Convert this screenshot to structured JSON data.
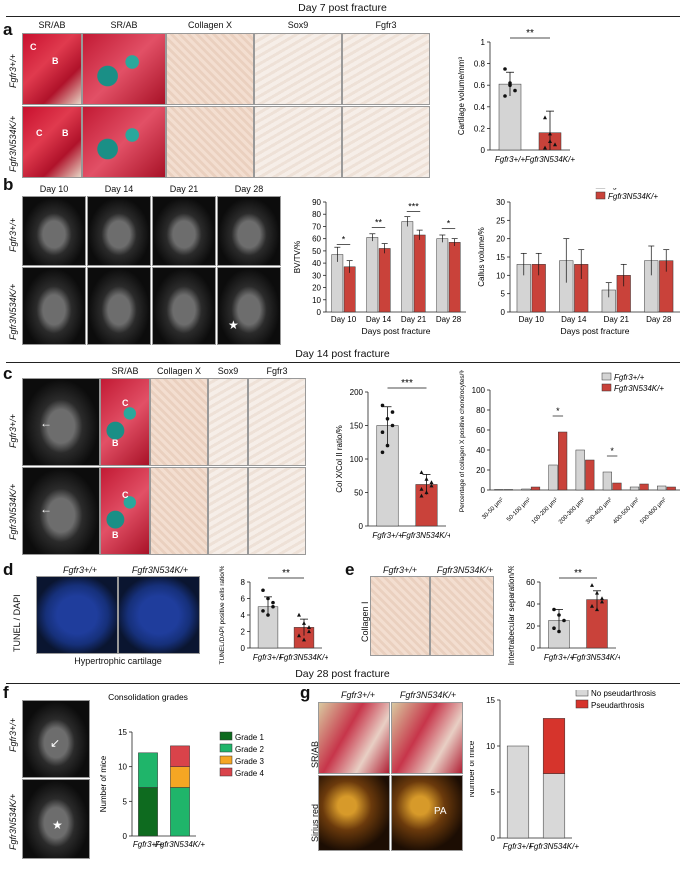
{
  "sections": {
    "day7": "Day 7 post fracture",
    "day14": "Day 14 post fracture",
    "day28": "Day 28 post fracture"
  },
  "panels": {
    "a": "a",
    "b": "b",
    "c": "c",
    "d": "d",
    "e": "e",
    "f": "f",
    "g": "g"
  },
  "genotypes": {
    "wt": "Fgfr3+/+",
    "mut": "Fgfr3N534K/+"
  },
  "panel_a": {
    "stains": [
      "SR/AB",
      "SR/AB",
      "Collagen X",
      "Sox9",
      "Fgfr3"
    ],
    "letters": [
      "C",
      "B",
      "C",
      "B"
    ]
  },
  "panel_b": {
    "days": [
      "Day 10",
      "Day 14",
      "Day 21",
      "Day 28"
    ],
    "star": "★"
  },
  "panel_c": {
    "stains": [
      "SR/AB",
      "Collagen X",
      "Sox9",
      "Fgfr3"
    ],
    "letters": [
      "C",
      "B",
      "C",
      "B"
    ]
  },
  "panel_d": {
    "ylabel": "TUNEL / DAPI",
    "caption": "Hypertrophic cartilage"
  },
  "panel_e": {
    "ylabel": "Collagen I"
  },
  "panel_g": {
    "labels": [
      "SR/AB",
      "Sirius red"
    ],
    "pa": "PA"
  },
  "chart_data": [
    {
      "id": "a",
      "type": "bar",
      "categories": [
        "Fgfr3+/+",
        "Fgfr3N534K/+"
      ],
      "values": [
        0.61,
        0.16
      ],
      "errors": [
        0.11,
        0.2
      ],
      "points": [
        [
          0.75,
          0.6,
          0.55,
          0.5,
          0.62
        ],
        [
          0.3,
          0.15,
          0.05,
          0.02,
          0.08
        ]
      ],
      "ylabel": "Cartilage volume/mm³",
      "ylim": [
        0,
        1.0
      ],
      "yticks": [
        0,
        0.2,
        0.4,
        0.6,
        0.8,
        1.0
      ],
      "sig": "**"
    },
    {
      "id": "b1",
      "type": "bar",
      "categories": [
        "Day 10",
        "Day 14",
        "Day 21",
        "Day 28"
      ],
      "series": [
        {
          "name": "Fgfr3+/+",
          "values": [
            47,
            61,
            74,
            60
          ]
        },
        {
          "name": "Fgfr3N534K/+",
          "values": [
            37,
            52,
            63,
            57
          ]
        }
      ],
      "errors": [
        [
          6,
          3,
          4,
          3
        ],
        [
          5,
          4,
          4,
          3
        ]
      ],
      "ylabel": "BV/TV/%",
      "xlabel": "Days post fracture",
      "ylim": [
        0,
        90
      ],
      "yticks": [
        0,
        10,
        20,
        30,
        40,
        50,
        60,
        70,
        80,
        90
      ],
      "sig": [
        "*",
        "**",
        "***",
        "*"
      ]
    },
    {
      "id": "b2",
      "type": "bar",
      "categories": [
        "Day 10",
        "Day 14",
        "Day 21",
        "Day 28"
      ],
      "series": [
        {
          "name": "Fgfr3+/+",
          "values": [
            13,
            14,
            6,
            14
          ]
        },
        {
          "name": "Fgfr3N534K/+",
          "values": [
            13,
            13,
            10,
            14
          ]
        }
      ],
      "errors": [
        [
          3,
          6,
          2,
          4
        ],
        [
          3,
          4,
          3,
          3
        ]
      ],
      "ylabel": "Callus volume/%",
      "xlabel": "Days post fracture",
      "ylim": [
        0,
        30
      ],
      "yticks": [
        0,
        5,
        10,
        15,
        20,
        25,
        30
      ]
    },
    {
      "id": "c1",
      "type": "bar",
      "categories": [
        "Fgfr3+/+",
        "Fgfr3N534K/+"
      ],
      "values": [
        150,
        62
      ],
      "errors": [
        28,
        15
      ],
      "points": [
        [
          180,
          160,
          150,
          140,
          120,
          170,
          110
        ],
        [
          80,
          70,
          60,
          55,
          50,
          65,
          45
        ]
      ],
      "ylabel": "Col X/Col II ratio/%",
      "ylim": [
        0,
        200
      ],
      "yticks": [
        0,
        50,
        100,
        150,
        200
      ],
      "sig": "***"
    },
    {
      "id": "c2",
      "type": "bar",
      "categories": [
        "30-50 μm²",
        "50-100 μm²",
        "100-200 μm²",
        "200-300 μm²",
        "300-400 μm²",
        "400-500 μm²",
        "500-600 μm²"
      ],
      "series": [
        {
          "name": "Fgfr3+/+",
          "values": [
            0.5,
            1,
            25,
            40,
            18,
            3,
            4
          ]
        },
        {
          "name": "Fgfr3N534K/+",
          "values": [
            0.5,
            3,
            58,
            30,
            7,
            6,
            3
          ]
        }
      ],
      "ylabel": "Percentage of collagen X positive chondrocytes/%",
      "ylim": [
        0,
        100
      ],
      "yticks": [
        0,
        20,
        40,
        60,
        80,
        100
      ],
      "sig": [
        "*",
        "*"
      ]
    },
    {
      "id": "d",
      "type": "bar",
      "categories": [
        "Fgfr3+/+",
        "Fgfr3N534K/+"
      ],
      "values": [
        5.0,
        2.5
      ],
      "errors": [
        1.2,
        1.0
      ],
      "points": [
        [
          7,
          6,
          5,
          4.5,
          4,
          5.5
        ],
        [
          4,
          3,
          2,
          1.5,
          1,
          2.5
        ]
      ],
      "ylabel": "TUNEL/DAPI positive cells ratio/%",
      "ylim": [
        0,
        8
      ],
      "yticks": [
        0,
        2,
        4,
        6,
        8
      ],
      "sig": "**"
    },
    {
      "id": "e",
      "type": "bar",
      "categories": [
        "Fgfr3+/+",
        "Fgfr3N534K/+"
      ],
      "values": [
        25,
        44
      ],
      "errors": [
        10,
        8
      ],
      "points": [
        [
          35,
          30,
          25,
          18,
          15
        ],
        [
          57,
          50,
          45,
          38,
          35,
          42
        ]
      ],
      "ylabel": "Intertrabecular separation/%",
      "ylim": [
        0,
        60
      ],
      "yticks": [
        0,
        20,
        40,
        60
      ],
      "sig": "**"
    },
    {
      "id": "f",
      "type": "bar",
      "stacked": true,
      "categories": [
        "Fgfr3+/+",
        "Fgfr3N534K/+"
      ],
      "series": [
        {
          "name": "Grade 1",
          "values": [
            7,
            0
          ]
        },
        {
          "name": "Grade 2",
          "values": [
            5,
            7
          ]
        },
        {
          "name": "Grade 3",
          "values": [
            0,
            3
          ]
        },
        {
          "name": "Grade 4",
          "values": [
            0,
            3
          ]
        }
      ],
      "title": "Consolidation grades",
      "ylabel": "Number of mice",
      "ylim": [
        0,
        15
      ],
      "yticks": [
        0,
        5,
        10,
        15
      ]
    },
    {
      "id": "g",
      "type": "bar",
      "stacked": true,
      "categories": [
        "Fgfr3+/+",
        "Fgfr3N534K/+"
      ],
      "series": [
        {
          "name": "No pseudarthrosis",
          "values": [
            10,
            7
          ]
        },
        {
          "name": "Pseudarthrosis",
          "values": [
            0,
            6
          ]
        }
      ],
      "ylabel": "Number of mice",
      "ylim": [
        0,
        15
      ],
      "yticks": [
        0,
        5,
        10,
        15
      ]
    }
  ],
  "colors": {
    "wt": "#d4d4d4",
    "mut": "#c9423a",
    "g1": "#0e6b1f",
    "g2": "#1fb56a",
    "g3": "#f5a623",
    "g4": "#d9434a",
    "nopa": "#d8d8d8",
    "pa": "#d6342c"
  }
}
